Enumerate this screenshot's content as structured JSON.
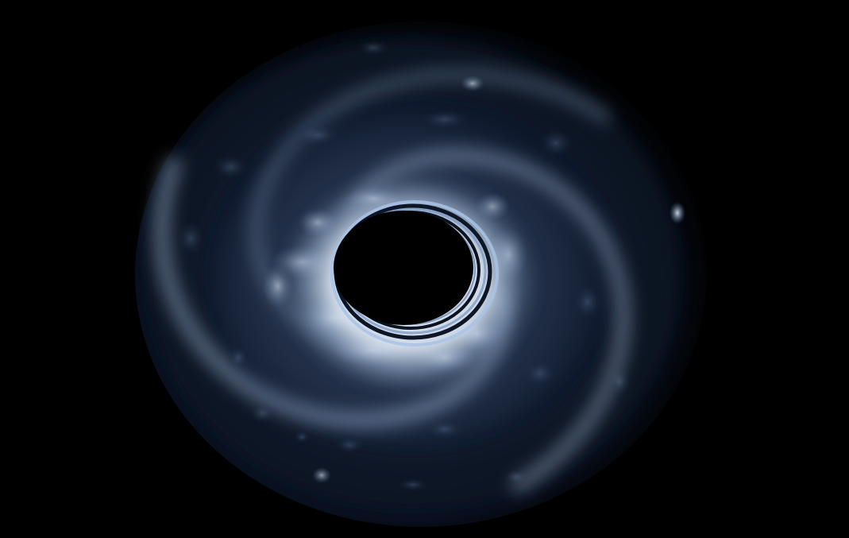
{
  "scene": {
    "description_free": true,
    "background_color": "#000000",
    "palette": {
      "glow_bright": "#dfe9f7",
      "glow_mid": "#7d97b8",
      "glow_dim": "#2a3b55",
      "deep": "#0b1424",
      "ring": "#9fbbe0"
    },
    "icon": "swirl-disk-icon"
  }
}
